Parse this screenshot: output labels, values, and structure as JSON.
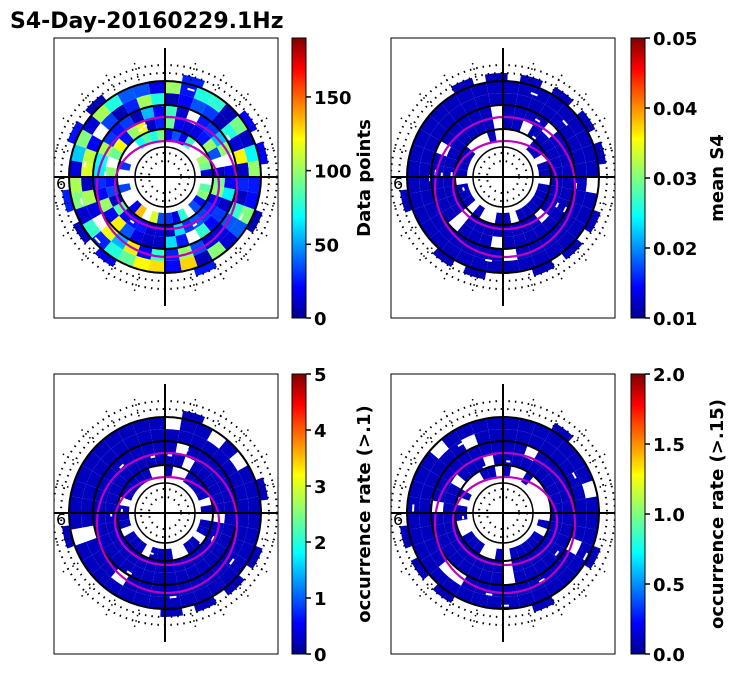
{
  "figure": {
    "title": "S4-Day-20160229.1Hz"
  },
  "chart_data": [
    {
      "type": "heatmap",
      "projection": "polar (magnetic latitude / local time dial)",
      "panel": "top-left",
      "colormap": "jet",
      "colorbar_label": "Data points",
      "colorbar_range": [
        0,
        190
      ],
      "colorbar_ticks": [
        0,
        50,
        100,
        150
      ],
      "colorbar_tick_labels": [
        "0",
        "50",
        "100",
        "150"
      ],
      "ring_label": "6",
      "dominant_level": 40,
      "oval_contours": 2
    },
    {
      "type": "heatmap",
      "projection": "polar (magnetic latitude / local time dial)",
      "panel": "top-right",
      "colormap": "jet",
      "colorbar_label": "mean S4",
      "colorbar_range": [
        0.01,
        0.05
      ],
      "colorbar_ticks": [
        0.01,
        0.02,
        0.03,
        0.04,
        0.05
      ],
      "colorbar_tick_labels": [
        "0.01",
        "0.02",
        "0.03",
        "0.04",
        "0.05"
      ],
      "ring_label": "6",
      "dominant_level": 0.012,
      "oval_contours": 2
    },
    {
      "type": "heatmap",
      "projection": "polar (magnetic latitude / local time dial)",
      "panel": "bottom-left",
      "colormap": "jet",
      "colorbar_label": "occurrence rate (>.1)",
      "colorbar_range": [
        0,
        5
      ],
      "colorbar_ticks": [
        0,
        1,
        2,
        3,
        4,
        5
      ],
      "colorbar_tick_labels": [
        "0",
        "1",
        "2",
        "3",
        "4",
        "5"
      ],
      "ring_label": "6",
      "dominant_level": 0,
      "oval_contours": 2
    },
    {
      "type": "heatmap",
      "projection": "polar (magnetic latitude / local time dial)",
      "panel": "bottom-right",
      "colormap": "jet",
      "colorbar_label": "occurrence rate (>.15)",
      "colorbar_range": [
        0.0,
        2.0
      ],
      "colorbar_ticks": [
        0.0,
        0.5,
        1.0,
        1.5,
        2.0
      ],
      "colorbar_tick_labels": [
        "0.0",
        "0.5",
        "1.0",
        "1.5",
        "2.0"
      ],
      "ring_label": "6",
      "dominant_level": 0,
      "oval_contours": 2
    }
  ]
}
